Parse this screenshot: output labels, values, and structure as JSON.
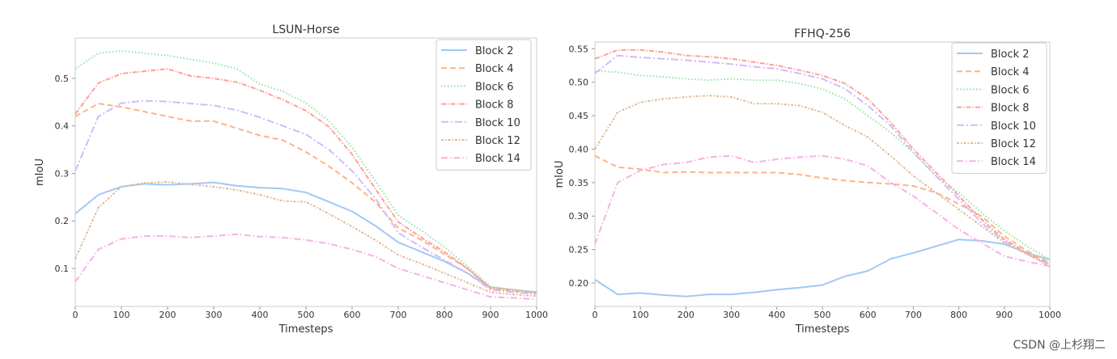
{
  "watermark": "CSDN @上杉翔二",
  "series_styles": [
    {
      "name": "Block 2",
      "color": "#a1c9f4",
      "dash": ""
    },
    {
      "name": "Block 4",
      "color": "#ffb482",
      "dash": "7,4"
    },
    {
      "name": "Block 6",
      "color": "#8de5a1",
      "dash": "1.5,2.5"
    },
    {
      "name": "Block 8",
      "color": "#ff9f9b",
      "dash": "6,2,1.5,2"
    },
    {
      "name": "Block 10",
      "color": "#d0bbff",
      "dash": "9,3,2,3"
    },
    {
      "name": "Block 12",
      "color": "#debb9b",
      "dash": "3,2,1.5,2"
    },
    {
      "name": "Block 14",
      "color": "#fab0e4",
      "dash": "8,3,1.5,3"
    }
  ],
  "chart_data": [
    {
      "type": "line",
      "title": "LSUN-Horse",
      "xlabel": "Timesteps",
      "ylabel": "mIoU",
      "xlim": [
        0,
        1000
      ],
      "ylim": [
        0.02,
        0.585
      ],
      "xticks": [
        0,
        100,
        200,
        300,
        400,
        500,
        600,
        700,
        800,
        900,
        1000
      ],
      "yticks": [
        0.1,
        0.2,
        0.3,
        0.4,
        0.5
      ],
      "ytick_labels": [
        "0.1",
        "0.2",
        "0.3",
        "0.4",
        "0.5"
      ],
      "legend_position": "top-right",
      "x": [
        0,
        50,
        100,
        150,
        200,
        250,
        300,
        350,
        400,
        450,
        500,
        550,
        600,
        650,
        700,
        750,
        800,
        850,
        900,
        950,
        1000
      ],
      "series": [
        {
          "name": "Block 2",
          "values": [
            0.215,
            0.255,
            0.272,
            0.278,
            0.276,
            0.278,
            0.281,
            0.274,
            0.27,
            0.268,
            0.26,
            0.24,
            0.22,
            0.19,
            0.155,
            0.135,
            0.115,
            0.09,
            0.06,
            0.055,
            0.05
          ]
        },
        {
          "name": "Block 4",
          "values": [
            0.42,
            0.447,
            0.44,
            0.43,
            0.42,
            0.41,
            0.41,
            0.395,
            0.38,
            0.37,
            0.345,
            0.315,
            0.28,
            0.24,
            0.185,
            0.16,
            0.13,
            0.1,
            0.06,
            0.055,
            0.048
          ]
        },
        {
          "name": "Block 6",
          "values": [
            0.52,
            0.553,
            0.558,
            0.553,
            0.548,
            0.54,
            0.532,
            0.52,
            0.488,
            0.473,
            0.448,
            0.41,
            0.355,
            0.285,
            0.212,
            0.18,
            0.145,
            0.105,
            0.062,
            0.055,
            0.05
          ]
        },
        {
          "name": "Block 8",
          "values": [
            0.425,
            0.49,
            0.51,
            0.515,
            0.52,
            0.505,
            0.5,
            0.492,
            0.475,
            0.455,
            0.432,
            0.398,
            0.34,
            0.268,
            0.198,
            0.165,
            0.135,
            0.1,
            0.058,
            0.052,
            0.048
          ]
        },
        {
          "name": "Block 10",
          "values": [
            0.305,
            0.42,
            0.448,
            0.453,
            0.451,
            0.447,
            0.443,
            0.433,
            0.418,
            0.4,
            0.382,
            0.35,
            0.305,
            0.248,
            0.175,
            0.145,
            0.118,
            0.09,
            0.055,
            0.05,
            0.046
          ]
        },
        {
          "name": "Block 12",
          "values": [
            0.12,
            0.228,
            0.272,
            0.28,
            0.282,
            0.277,
            0.272,
            0.265,
            0.255,
            0.242,
            0.24,
            0.215,
            0.188,
            0.16,
            0.128,
            0.11,
            0.09,
            0.07,
            0.05,
            0.045,
            0.042
          ]
        },
        {
          "name": "Block 14",
          "values": [
            0.072,
            0.14,
            0.162,
            0.168,
            0.168,
            0.165,
            0.168,
            0.172,
            0.167,
            0.165,
            0.16,
            0.152,
            0.14,
            0.125,
            0.1,
            0.085,
            0.07,
            0.055,
            0.04,
            0.038,
            0.035
          ]
        }
      ]
    },
    {
      "type": "line",
      "title": "FFHQ-256",
      "xlabel": "Timesteps",
      "ylabel": "mIoU",
      "xlim": [
        0,
        1000
      ],
      "ylim": [
        0.165,
        0.56
      ],
      "xticks": [
        0,
        100,
        200,
        300,
        400,
        500,
        600,
        700,
        800,
        900,
        1000
      ],
      "yticks": [
        0.2,
        0.25,
        0.3,
        0.35,
        0.4,
        0.45,
        0.5,
        0.55
      ],
      "ytick_labels": [
        "0.20",
        "0.25",
        "0.30",
        "0.35",
        "0.40",
        "0.45",
        "0.50",
        "0.55"
      ],
      "legend_position": "top-right",
      "x": [
        0,
        50,
        100,
        150,
        200,
        250,
        300,
        350,
        400,
        450,
        500,
        550,
        600,
        650,
        700,
        750,
        800,
        850,
        900,
        950,
        1000
      ],
      "series": [
        {
          "name": "Block 2",
          "values": [
            0.205,
            0.183,
            0.185,
            0.182,
            0.18,
            0.183,
            0.183,
            0.186,
            0.19,
            0.193,
            0.197,
            0.21,
            0.218,
            0.236,
            0.245,
            0.255,
            0.265,
            0.263,
            0.258,
            0.245,
            0.235
          ]
        },
        {
          "name": "Block 4",
          "values": [
            0.39,
            0.373,
            0.37,
            0.365,
            0.366,
            0.365,
            0.365,
            0.365,
            0.365,
            0.362,
            0.357,
            0.353,
            0.35,
            0.348,
            0.345,
            0.335,
            0.318,
            0.3,
            0.27,
            0.248,
            0.23
          ]
        },
        {
          "name": "Block 6",
          "values": [
            0.517,
            0.515,
            0.51,
            0.508,
            0.505,
            0.503,
            0.505,
            0.503,
            0.503,
            0.498,
            0.49,
            0.475,
            0.45,
            0.425,
            0.395,
            0.36,
            0.335,
            0.305,
            0.278,
            0.255,
            0.235
          ]
        },
        {
          "name": "Block 8",
          "values": [
            0.535,
            0.548,
            0.548,
            0.545,
            0.54,
            0.538,
            0.535,
            0.53,
            0.525,
            0.518,
            0.51,
            0.498,
            0.475,
            0.44,
            0.4,
            0.365,
            0.33,
            0.295,
            0.265,
            0.245,
            0.228
          ]
        },
        {
          "name": "Block 10",
          "values": [
            0.513,
            0.54,
            0.537,
            0.535,
            0.533,
            0.53,
            0.527,
            0.523,
            0.52,
            0.513,
            0.505,
            0.49,
            0.465,
            0.435,
            0.395,
            0.36,
            0.325,
            0.29,
            0.262,
            0.243,
            0.227
          ]
        },
        {
          "name": "Block 12",
          "values": [
            0.4,
            0.455,
            0.47,
            0.475,
            0.478,
            0.48,
            0.478,
            0.468,
            0.468,
            0.465,
            0.455,
            0.435,
            0.418,
            0.39,
            0.36,
            0.335,
            0.31,
            0.285,
            0.26,
            0.243,
            0.225
          ]
        },
        {
          "name": "Block 14",
          "values": [
            0.258,
            0.35,
            0.368,
            0.377,
            0.38,
            0.388,
            0.39,
            0.38,
            0.385,
            0.388,
            0.39,
            0.385,
            0.375,
            0.35,
            0.33,
            0.305,
            0.28,
            0.26,
            0.24,
            0.232,
            0.225
          ]
        }
      ]
    }
  ]
}
